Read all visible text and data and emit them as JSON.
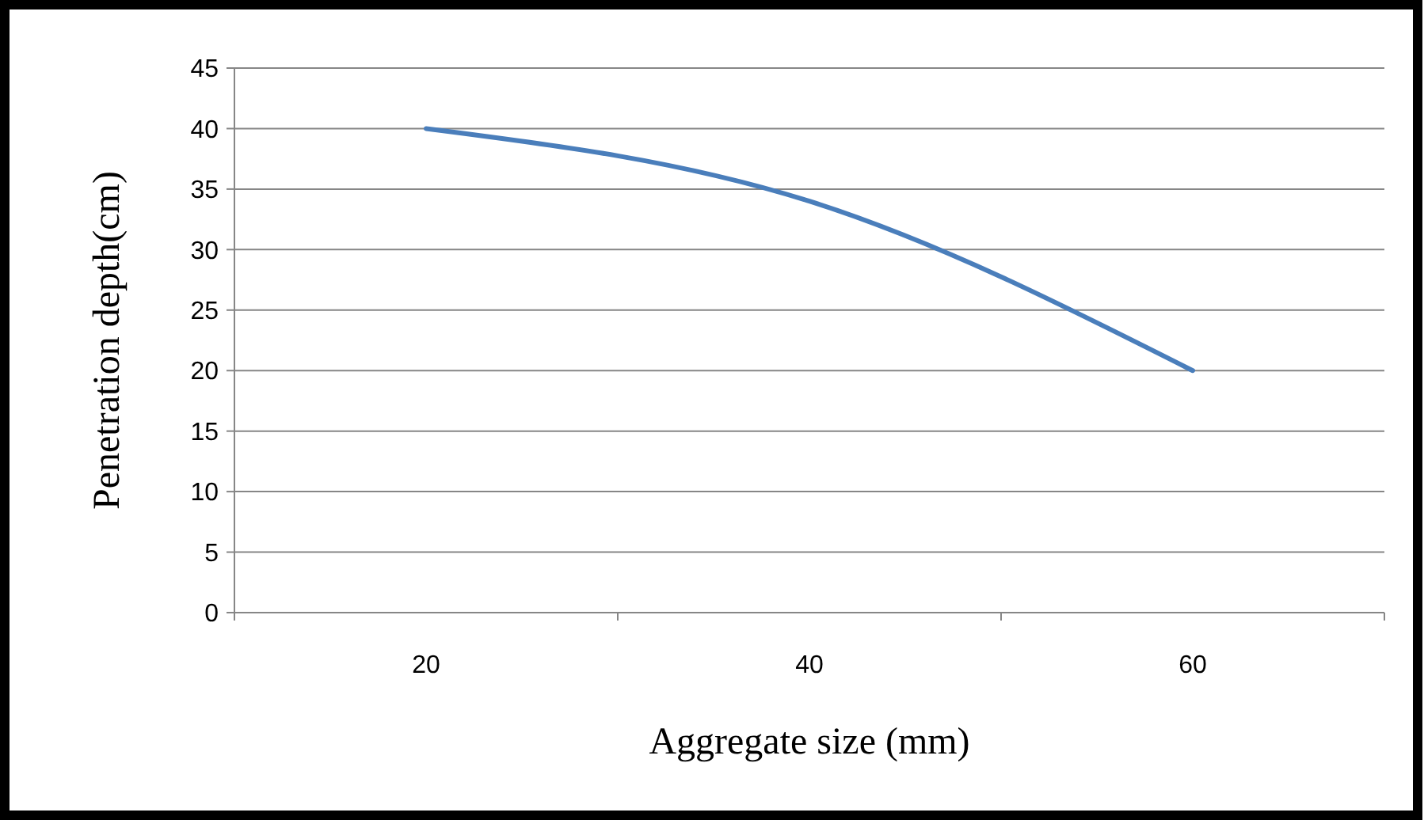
{
  "chart_data": {
    "type": "line",
    "xlabel": "Aggregate size (mm)",
    "ylabel": "Penetration depth(cm)",
    "categories": [
      "20",
      "40",
      "60"
    ],
    "series": [
      {
        "color": "#4a7ebb",
        "values": [
          40,
          34,
          20
        ]
      }
    ],
    "ylim": [
      0,
      45
    ],
    "yticks": [
      0,
      5,
      10,
      15,
      20,
      25,
      30,
      35,
      40,
      45
    ],
    "grid": "y",
    "marker": "none",
    "line_style": "solid"
  }
}
